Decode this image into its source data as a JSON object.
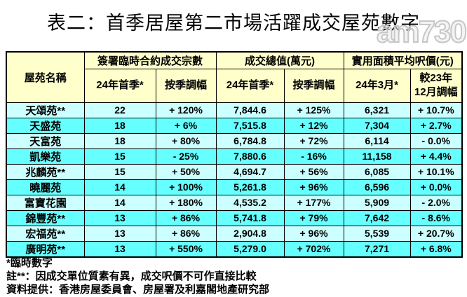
{
  "page": {
    "title": "表二：首季居屋第二市場活躍成交屋苑數字",
    "watermark": "am730"
  },
  "chart_data": {
    "type": "table",
    "title": "表二：首季居屋第二市場活躍成交屋苑數字",
    "header": {
      "estate": "屋苑名稱",
      "groups": [
        {
          "label": "簽署臨時合約成交宗數",
          "subs": [
            "24年首季*",
            "按季調幅"
          ]
        },
        {
          "label": "成交總值(萬元)",
          "subs": [
            "24年首季*",
            "按季調幅"
          ]
        },
        {
          "label": "實用面積平均呎價(元)",
          "subs": [
            "24年3月*",
            "較23年\n12月調幅"
          ]
        }
      ]
    },
    "columns": [
      "屋苑名稱",
      "簽署臨時合約成交宗數 24年首季*",
      "簽署臨時合約成交宗數 按季調幅",
      "成交總值(萬元) 24年首季*",
      "成交總值(萬元) 按季調幅",
      "實用面積平均呎價(元) 24年3月*",
      "實用面積平均呎價(元) 較23年12月調幅"
    ],
    "rows": [
      [
        "天頌苑**",
        "22",
        "+ 120%",
        "7,844.6",
        "+ 125%",
        "6,321",
        "+ 10.7%"
      ],
      [
        "天盛苑",
        "18",
        "+ 6%",
        "7,515.8",
        "+ 12%",
        "7,304",
        "+ 2.7%"
      ],
      [
        "天富苑",
        "18",
        "+ 80%",
        "6,784.8",
        "+ 72%",
        "6,114",
        "- 0.0%"
      ],
      [
        "凱樂苑",
        "15",
        "- 25%",
        "7,880.6",
        "- 16%",
        "11,158",
        "+ 4.4%"
      ],
      [
        "兆麟苑**",
        "15",
        "+ 50%",
        "4,694.7",
        "+ 56%",
        "6,085",
        "+ 10.1%"
      ],
      [
        "曉麗苑",
        "14",
        "+ 100%",
        "5,261.8",
        "+ 96%",
        "6,596",
        "+ 0.0%"
      ],
      [
        "富寶花園",
        "14",
        "+ 180%",
        "4,535.2",
        "+ 177%",
        "5,909",
        "- 2.0%"
      ],
      [
        "錦豐苑**",
        "13",
        "+ 86%",
        "5,741.8",
        "+ 79%",
        "7,642",
        "- 8.6%"
      ],
      [
        "宏福苑**",
        "13",
        "+ 86%",
        "2,904.8",
        "+ 96%",
        "5,539",
        "+ 20.7%"
      ],
      [
        "廣明苑**",
        "13",
        "+ 550%",
        "5,279.0",
        "+ 702%",
        "7,271",
        "+ 6.8%"
      ]
    ],
    "footnotes": [
      "*臨時數字",
      "註**：因成交單位質素有異，成交呎價不可作直接比較",
      "資料提供：香港房屋委員會、房屋署及利嘉閣地產研究部"
    ]
  },
  "colors": {
    "header_bg": "#FFFFCC",
    "row_odd_bg": "#CCFFFF",
    "row_even_bg": "#66FFFF",
    "border": "#000000",
    "text": "#000000",
    "watermark": "#C6C6C6"
  }
}
